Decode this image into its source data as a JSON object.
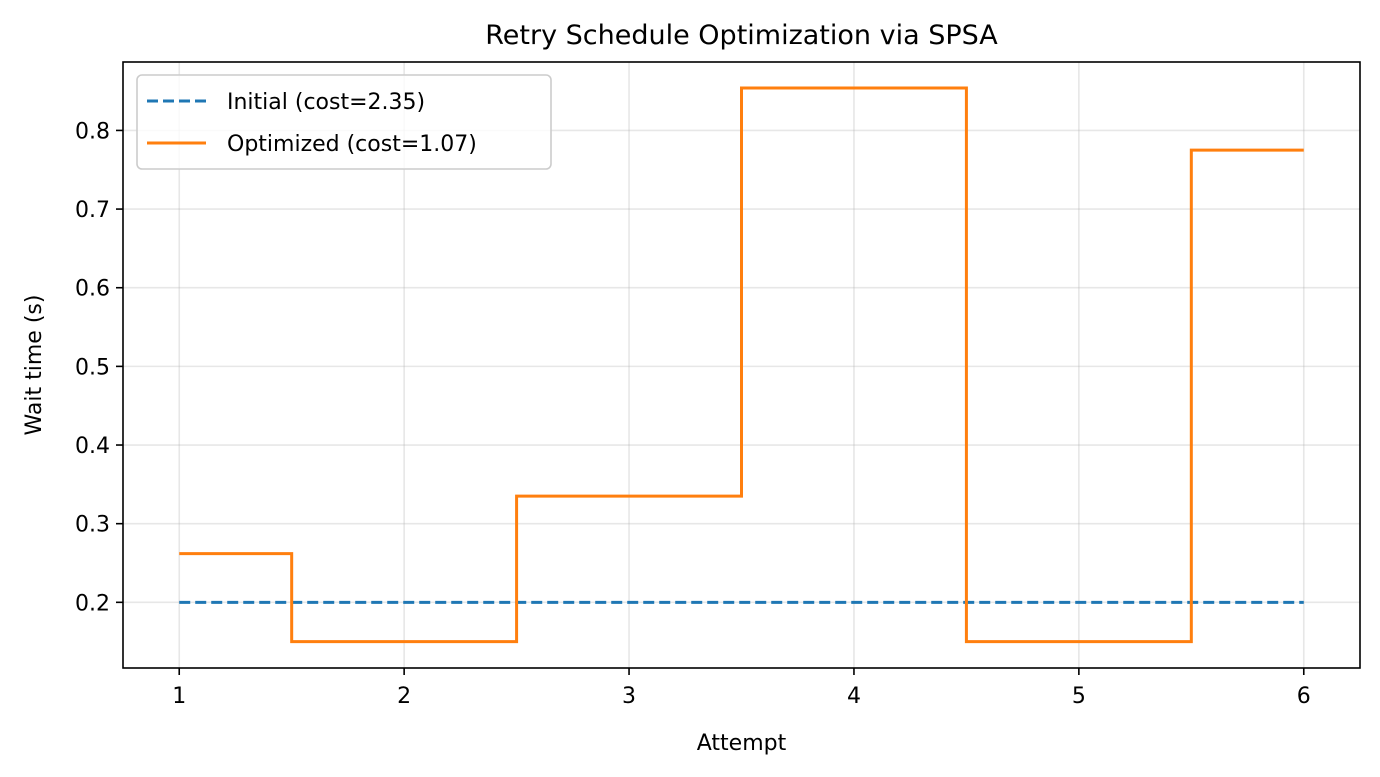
{
  "chart_data": {
    "type": "line",
    "title": "Retry Schedule Optimization via SPSA",
    "xlabel": "Attempt",
    "ylabel": "Wait time (s)",
    "xlim": [
      0.75,
      6.25
    ],
    "ylim": [
      0.1165,
      0.887
    ],
    "xticks": [
      1,
      2,
      3,
      4,
      5,
      6
    ],
    "yticks": [
      0.2,
      0.3,
      0.4,
      0.5,
      0.6,
      0.7,
      0.8
    ],
    "grid": true,
    "legend_position": "upper-left",
    "series": [
      {
        "name": "Initial (cost=2.35)",
        "style": "dashed",
        "step": "mid",
        "color": "#1f77b4",
        "x": [
          1,
          2,
          3,
          4,
          5,
          6
        ],
        "y": [
          0.2,
          0.2,
          0.2,
          0.2,
          0.2,
          0.2
        ]
      },
      {
        "name": "Optimized (cost=1.07)",
        "style": "solid",
        "step": "mid",
        "color": "#ff7f0e",
        "x": [
          1,
          2,
          3,
          4,
          5,
          6
        ],
        "y": [
          0.262,
          0.15,
          0.335,
          0.854,
          0.15,
          0.775
        ]
      }
    ]
  }
}
